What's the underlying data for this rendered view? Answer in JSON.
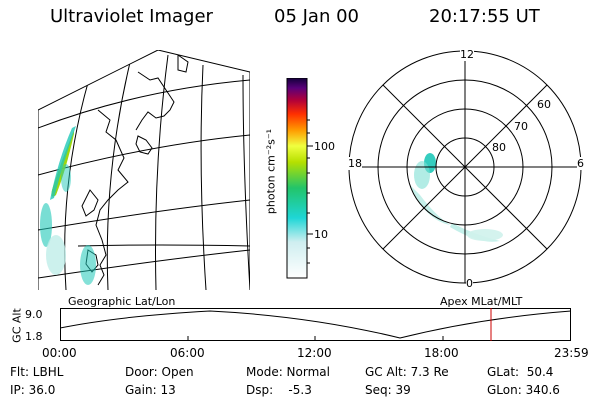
{
  "header": {
    "title": "Ultraviolet Imager",
    "date": "05 Jan 00",
    "time": "20:17:55 UT"
  },
  "colorbar": {
    "unit": "photon cm⁻²s⁻¹",
    "ticks": [
      "100",
      "10"
    ]
  },
  "polar": {
    "mlt_labels": {
      "top": "12",
      "right": "6",
      "bottom": "0",
      "left": "18"
    },
    "lat_labels": [
      "60",
      "70",
      "80"
    ]
  },
  "panel_labels": {
    "left": "Geographic Lat/Lon",
    "right": "Apex  MLat/MLT"
  },
  "orbit": {
    "axis_label": "GC Alt",
    "y_ticks": [
      "9.0",
      "1.8"
    ],
    "x_ticks": [
      "00:00",
      "06:00",
      "12:00",
      "18:00",
      "23:59"
    ]
  },
  "footer": {
    "row1": {
      "flt": "Flt: LBHL",
      "door": "Door: Open",
      "mode": "Mode: Normal",
      "gcalt": "GC Alt: 7.3 Re",
      "glat": "GLat:  50.4"
    },
    "row2": {
      "ip": "IP: 36.0",
      "gain": "Gain: 13",
      "dsp": "Dsp:    -5.3",
      "seq": "Seq: 39",
      "glon": "GLon: 340.6"
    }
  },
  "colors": {
    "aurora_bright": "#9ad400",
    "aurora_mid": "#1fc8b8",
    "aurora_faint": "#bfeee8",
    "marker": "#cc0000"
  }
}
